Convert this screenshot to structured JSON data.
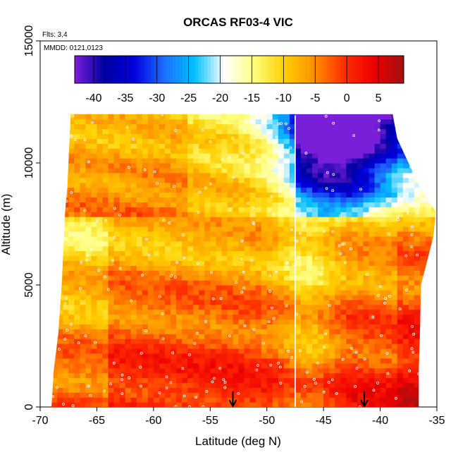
{
  "chart_data": {
    "type": "heatmap",
    "title": "ORCAS RF03-4 VIC",
    "annotations": {
      "flights": "Flts: 3,4",
      "dates": "MMDD: 0121,0123"
    },
    "xlabel": "Latitude (deg N)",
    "ylabel": "Altitude (m)",
    "xlim": [
      -70,
      -35
    ],
    "ylim": [
      0,
      15000
    ],
    "x_ticks": [
      -70,
      -65,
      -60,
      -55,
      -50,
      -45,
      -40,
      -35
    ],
    "y_ticks": [
      0,
      5000,
      10000,
      15000
    ],
    "grid": false,
    "legend": "colorbar-top",
    "colorbar": {
      "range": [
        -43,
        9
      ],
      "ticks": [
        -40,
        -35,
        -30,
        -25,
        -20,
        -15,
        -10,
        -5,
        0,
        5
      ],
      "colors": [
        "#7a1fd8",
        "#0000a0",
        "#0000e0",
        "#1e6fff",
        "#00c0ff",
        "#ffffff",
        "#ffff80",
        "#ffd000",
        "#ff9000",
        "#ff3000",
        "#ee0000",
        "#a01010"
      ]
    },
    "vertical_line_lat": -47.5,
    "markers_lat": [
      -53,
      -41.4
    ],
    "envelope": [
      {
        "alt": 0,
        "lat_min": -69,
        "lat_max": -36.6
      },
      {
        "alt": 1500,
        "lat_min": -68.8,
        "lat_max": -36.6
      },
      {
        "alt": 3000,
        "lat_min": -68.4,
        "lat_max": -36.5
      },
      {
        "alt": 5000,
        "lat_min": -68.1,
        "lat_max": -36.4
      },
      {
        "alt": 7000,
        "lat_min": -67.9,
        "lat_max": -35.3
      },
      {
        "alt": 8000,
        "lat_min": -67.8,
        "lat_max": -35.1
      },
      {
        "alt": 9000,
        "lat_min": -67.6,
        "lat_max": -36.5
      },
      {
        "alt": 10000,
        "lat_min": -67.5,
        "lat_max": -37.5
      },
      {
        "alt": 11000,
        "lat_min": -67.4,
        "lat_max": -38.5
      },
      {
        "alt": 12000,
        "lat_min": -67.3,
        "lat_max": -38.9
      }
    ]
  }
}
